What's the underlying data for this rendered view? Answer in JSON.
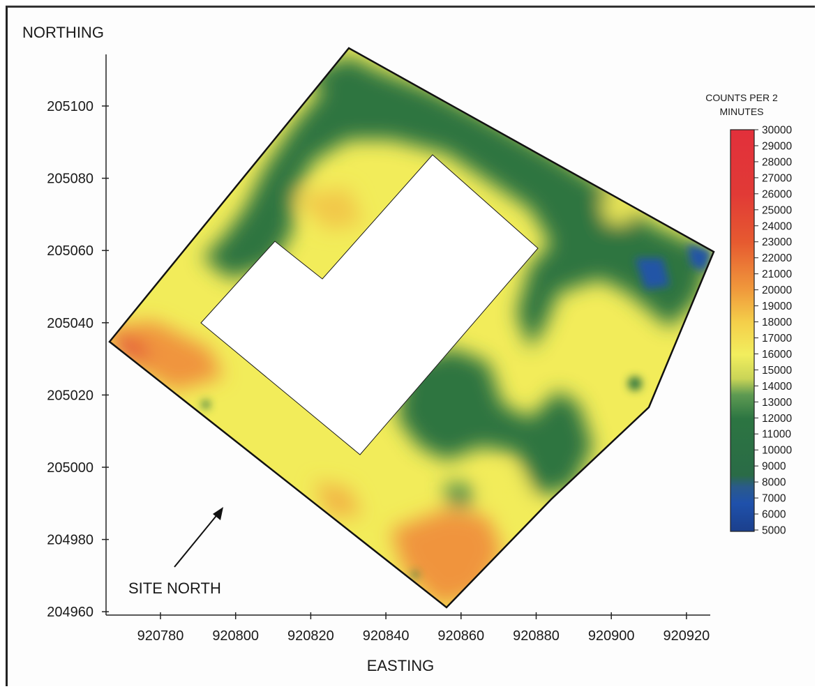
{
  "map": {
    "y_axis_title": "NORTHING",
    "x_axis_title": "EASTING",
    "north_label": "SITE NORTH",
    "y_ticks": [
      "205100",
      "205080",
      "205060",
      "205040",
      "205020",
      "205000",
      "204980",
      "204960"
    ],
    "x_ticks": [
      "920780",
      "920800",
      "920820",
      "920840",
      "920860",
      "920880",
      "920900",
      "920920"
    ]
  },
  "legend": {
    "title_line1": "COUNTS PER 2",
    "title_line2": "MINUTES",
    "ticks": [
      "30000",
      "29000",
      "28000",
      "27000",
      "26000",
      "25000",
      "24000",
      "23000",
      "22000",
      "21000",
      "20000",
      "19000",
      "18000",
      "17000",
      "16000",
      "15000",
      "14000",
      "13000",
      "12000",
      "11000",
      "10000",
      "9000",
      "8000",
      "7000",
      "6000",
      "5000"
    ],
    "colors": {
      "high": "#e0313a",
      "orange": "#f08c3a",
      "yellow": "#f2ec5a",
      "green": "#2e7540",
      "blue": "#1f4fa8"
    }
  }
}
